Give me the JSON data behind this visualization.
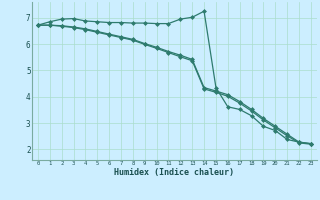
{
  "xlabel": "Humidex (Indice chaleur)",
  "ylabel": "",
  "bg_color": "#cceeff",
  "grid_color": "#aaddcc",
  "line_color": "#2e7b6e",
  "border_color": "#7aaba0",
  "xlim": [
    -0.5,
    23.5
  ],
  "ylim": [
    1.6,
    7.6
  ],
  "yticks": [
    2,
    3,
    4,
    5,
    6,
    7
  ],
  "xticks": [
    0,
    1,
    2,
    3,
    4,
    5,
    6,
    7,
    8,
    9,
    10,
    11,
    12,
    13,
    14,
    15,
    16,
    17,
    18,
    19,
    20,
    21,
    22,
    23
  ],
  "line1_x": [
    0,
    1,
    2,
    3,
    4,
    5,
    6,
    7,
    8,
    9,
    10,
    11,
    12,
    13,
    14,
    15,
    16,
    17,
    18,
    19,
    20,
    21,
    22,
    23
  ],
  "line1_y": [
    6.72,
    6.85,
    6.95,
    6.97,
    6.88,
    6.85,
    6.82,
    6.82,
    6.8,
    6.8,
    6.78,
    6.78,
    6.95,
    7.02,
    7.25,
    4.35,
    3.62,
    3.52,
    3.28,
    2.88,
    2.72,
    2.38,
    2.28,
    2.22
  ],
  "line2_x": [
    0,
    1,
    2,
    3,
    4,
    5,
    6,
    7,
    8,
    9,
    10,
    11,
    12,
    13,
    14,
    15,
    16,
    17,
    18,
    19,
    20,
    21,
    22,
    23
  ],
  "line2_y": [
    6.72,
    6.72,
    6.7,
    6.65,
    6.58,
    6.48,
    6.38,
    6.28,
    6.18,
    6.02,
    5.88,
    5.72,
    5.58,
    5.42,
    4.35,
    4.22,
    4.08,
    3.82,
    3.52,
    3.18,
    2.88,
    2.58,
    2.28,
    2.22
  ],
  "line3_x": [
    0,
    1,
    2,
    3,
    4,
    5,
    6,
    7,
    8,
    9,
    10,
    11,
    12,
    13,
    14,
    15,
    16,
    17,
    18,
    19,
    20,
    21,
    22,
    23
  ],
  "line3_y": [
    6.72,
    6.72,
    6.68,
    6.63,
    6.55,
    6.45,
    6.35,
    6.25,
    6.15,
    5.99,
    5.84,
    5.68,
    5.52,
    5.37,
    4.3,
    4.17,
    4.02,
    3.76,
    3.46,
    3.12,
    2.82,
    2.52,
    2.25,
    2.2
  ],
  "markersize": 2.5,
  "linewidth": 0.9
}
